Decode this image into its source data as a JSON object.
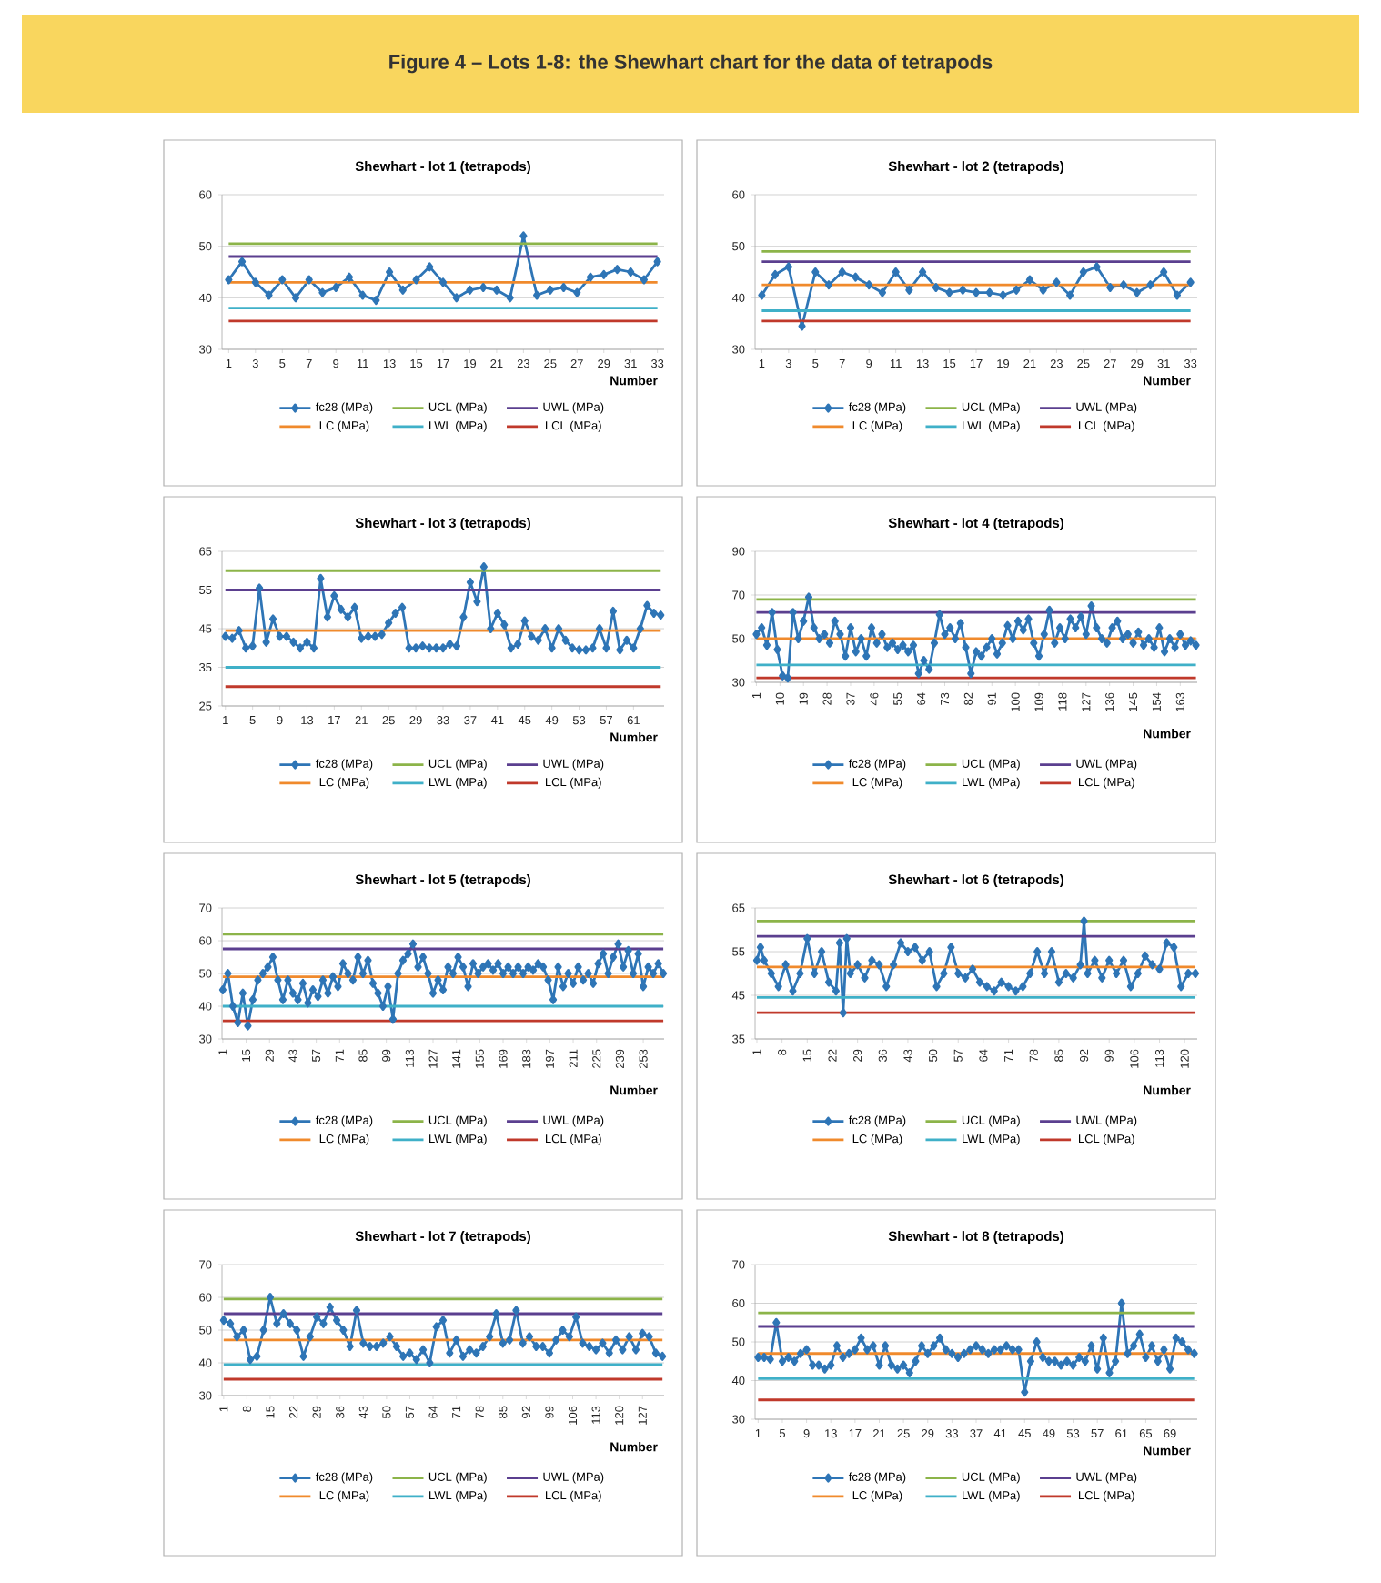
{
  "chart_data": [
    {
      "type": "line",
      "title": "Shewhart - lot 1 (tetrapods)",
      "annotations": [
        "Figure 4 – Lots 1-8: the Shewhart chart for the data of tetrapods"
      ],
      "xlabel": "Number",
      "xlim": [
        0.5,
        33.5
      ],
      "xticks": [
        1,
        3,
        5,
        7,
        9,
        11,
        13,
        15,
        17,
        19,
        21,
        23,
        25,
        27,
        29,
        31,
        33
      ],
      "ylim": [
        30,
        60
      ],
      "yticks": [
        30,
        40,
        50,
        60
      ],
      "grid": "y",
      "legend": "bottom",
      "series": [
        {
          "name": "fc28 (MPa)",
          "color": "#2e75b6",
          "marker": "diamond",
          "x": [
            1,
            2,
            3,
            4,
            5,
            6,
            7,
            8,
            9,
            10,
            11,
            12,
            13,
            14,
            15,
            16,
            17,
            18,
            19,
            20,
            21,
            22,
            23,
            24,
            25,
            26,
            27,
            28,
            29,
            30,
            31,
            32,
            33
          ],
          "values": [
            43.5,
            47,
            43,
            40.5,
            43.5,
            40,
            43.5,
            41,
            42,
            44,
            40.5,
            39.5,
            45,
            41.5,
            43.5,
            46,
            43,
            40,
            41.5,
            42,
            41.5,
            40,
            52,
            40.5,
            41.5,
            42,
            41,
            44,
            44.5,
            45.5,
            45,
            43.5,
            47
          ]
        },
        {
          "name": "UCL (MPa)",
          "color": "#8cb449",
          "x": [
            1,
            33
          ],
          "values": [
            50.5,
            50.5
          ]
        },
        {
          "name": "UWL (MPa)",
          "color": "#5b3f8f",
          "x": [
            1,
            33
          ],
          "values": [
            48,
            48
          ]
        },
        {
          "name": "LC (MPa)",
          "color": "#f08a2c",
          "x": [
            1,
            33
          ],
          "values": [
            43,
            43
          ]
        },
        {
          "name": "LWL (MPa)",
          "color": "#3fb0c8",
          "x": [
            1,
            33
          ],
          "values": [
            38,
            38
          ]
        },
        {
          "name": "LCL (MPa)",
          "color": "#c0392b",
          "x": [
            1,
            33
          ],
          "values": [
            35.5,
            35.5
          ]
        }
      ]
    },
    {
      "type": "line",
      "title": "Shewhart - lot 2 (tetrapods)",
      "xlabel": "Number",
      "xlim": [
        0.5,
        33.5
      ],
      "xticks": [
        1,
        3,
        5,
        7,
        9,
        11,
        13,
        15,
        17,
        19,
        21,
        23,
        25,
        27,
        29,
        31,
        33
      ],
      "ylim": [
        30,
        60
      ],
      "yticks": [
        30,
        40,
        50,
        60
      ],
      "grid": "y",
      "legend": "bottom",
      "series": [
        {
          "name": "fc28 (MPa)",
          "color": "#2e75b6",
          "marker": "diamond",
          "x": [
            1,
            2,
            3,
            4,
            5,
            6,
            7,
            8,
            9,
            10,
            11,
            12,
            13,
            14,
            15,
            16,
            17,
            18,
            19,
            20,
            21,
            22,
            23,
            24,
            25,
            26,
            27,
            28,
            29,
            30,
            31,
            32,
            33
          ],
          "values": [
            40.5,
            44.5,
            46,
            34.5,
            45,
            42.5,
            45,
            44,
            42.5,
            41,
            45,
            41.5,
            45,
            42,
            41,
            41.5,
            41,
            41,
            40.5,
            41.5,
            43.5,
            41.5,
            43,
            40.5,
            45,
            46,
            42,
            42.5,
            41,
            42.5,
            45,
            40.5,
            43
          ]
        },
        {
          "name": "UCL (MPa)",
          "color": "#8cb449",
          "x": [
            1,
            33
          ],
          "values": [
            49,
            49
          ]
        },
        {
          "name": "UWL (MPa)",
          "color": "#5b3f8f",
          "x": [
            1,
            33
          ],
          "values": [
            47,
            47
          ]
        },
        {
          "name": "LC (MPa)",
          "color": "#f08a2c",
          "x": [
            1,
            33
          ],
          "values": [
            42.5,
            42.5
          ]
        },
        {
          "name": "LWL (MPa)",
          "color": "#3fb0c8",
          "x": [
            1,
            33
          ],
          "values": [
            37.5,
            37.5
          ]
        },
        {
          "name": "LCL (MPa)",
          "color": "#c0392b",
          "x": [
            1,
            33
          ],
          "values": [
            35.5,
            35.5
          ]
        }
      ]
    },
    {
      "type": "line",
      "title": "Shewhart - lot 3 (tetrapods)",
      "xlabel": "Number",
      "xlim": [
        0.5,
        65.5
      ],
      "xticks": [
        1,
        5,
        9,
        13,
        17,
        21,
        25,
        29,
        33,
        37,
        41,
        45,
        49,
        53,
        57,
        61
      ],
      "ylim": [
        25,
        65
      ],
      "yticks": [
        25,
        35,
        45,
        55,
        65
      ],
      "grid": "y",
      "legend": "bottom",
      "series": [
        {
          "name": "fc28 (MPa)",
          "color": "#2e75b6",
          "marker": "diamond",
          "x": [
            1,
            2,
            3,
            4,
            5,
            6,
            7,
            8,
            9,
            10,
            11,
            12,
            13,
            14,
            15,
            16,
            17,
            18,
            19,
            20,
            21,
            22,
            23,
            24,
            25,
            26,
            27,
            28,
            29,
            30,
            31,
            32,
            33,
            34,
            35,
            36,
            37,
            38,
            39,
            40,
            41,
            42,
            43,
            44,
            45,
            46,
            47,
            48,
            49,
            50,
            51,
            52,
            53,
            54,
            55,
            56,
            57,
            58,
            59,
            60,
            61,
            62,
            63,
            64,
            65
          ],
          "values": [
            43,
            42.5,
            44.5,
            40,
            40.5,
            55.5,
            41.5,
            47.5,
            43,
            43,
            41.5,
            40,
            41.5,
            40,
            58,
            48,
            53.5,
            50,
            48,
            50.5,
            42.5,
            43,
            43,
            43.5,
            46.5,
            49,
            50.5,
            40,
            40,
            40.5,
            40,
            40,
            40,
            41,
            40.5,
            48,
            57,
            52,
            61,
            45,
            49,
            46,
            40,
            41,
            47,
            43,
            42,
            45,
            40,
            45,
            42,
            40,
            39.5,
            39.5,
            40,
            45,
            40,
            49.5,
            39.5,
            42,
            40,
            45,
            51,
            49,
            48.5
          ]
        },
        {
          "name": "UCL (MPa)",
          "color": "#8cb449",
          "x": [
            1,
            65
          ],
          "values": [
            60,
            60
          ]
        },
        {
          "name": "UWL (MPa)",
          "color": "#5b3f8f",
          "x": [
            1,
            65
          ],
          "values": [
            55,
            55
          ]
        },
        {
          "name": "LC (MPa)",
          "color": "#f08a2c",
          "x": [
            1,
            65
          ],
          "values": [
            44.5,
            44.5
          ]
        },
        {
          "name": "LWL (MPa)",
          "color": "#3fb0c8",
          "x": [
            1,
            65
          ],
          "values": [
            35,
            35
          ]
        },
        {
          "name": "LCL (MPa)",
          "color": "#c0392b",
          "x": [
            1,
            65
          ],
          "values": [
            30,
            30
          ]
        }
      ]
    },
    {
      "type": "line",
      "title": "Shewhart - lot 4 (tetrapods)",
      "xlabel": "Number",
      "xlim": [
        0.5,
        169.5
      ],
      "xticks": [
        1,
        10,
        19,
        28,
        37,
        46,
        55,
        64,
        73,
        82,
        91,
        100,
        109,
        118,
        127,
        136,
        145,
        154,
        163
      ],
      "ylim": [
        30,
        90
      ],
      "yticks": [
        30,
        50,
        70,
        90
      ],
      "grid": "y",
      "legend": "bottom",
      "series": [
        {
          "name": "fc28 (MPa)",
          "color": "#2e75b6",
          "marker": "diamond",
          "x": [
            1,
            3,
            5,
            7,
            9,
            11,
            13,
            15,
            17,
            19,
            21,
            23,
            25,
            27,
            29,
            31,
            33,
            35,
            37,
            39,
            41,
            43,
            45,
            47,
            49,
            51,
            53,
            55,
            57,
            59,
            61,
            63,
            65,
            67,
            69,
            71,
            73,
            75,
            77,
            79,
            81,
            83,
            85,
            87,
            89,
            91,
            93,
            95,
            97,
            99,
            101,
            103,
            105,
            107,
            109,
            111,
            113,
            115,
            117,
            119,
            121,
            123,
            125,
            127,
            129,
            131,
            133,
            135,
            137,
            139,
            141,
            143,
            145,
            147,
            149,
            151,
            153,
            155,
            157,
            159,
            161,
            163,
            165,
            167,
            169
          ],
          "values": [
            52,
            55,
            47,
            62,
            45,
            33,
            32,
            62,
            50,
            58,
            69,
            55,
            50,
            52,
            48,
            58,
            52,
            42,
            55,
            44,
            50,
            42,
            55,
            48,
            52,
            46,
            48,
            45,
            47,
            44,
            47,
            34,
            40,
            36,
            48,
            61,
            52,
            55,
            50,
            57,
            46,
            34,
            44,
            42,
            46,
            50,
            43,
            48,
            56,
            50,
            58,
            54,
            59,
            48,
            42,
            52,
            63,
            48,
            55,
            50,
            59,
            55,
            60,
            52,
            65,
            55,
            50,
            48,
            55,
            58,
            50,
            52,
            48,
            53,
            47,
            50,
            46,
            55,
            44,
            50,
            46,
            52,
            47,
            49,
            47
          ]
        },
        {
          "name": "UCL (MPa)",
          "color": "#8cb449",
          "x": [
            1,
            169
          ],
          "values": [
            68,
            68
          ]
        },
        {
          "name": "UWL (MPa)",
          "color": "#5b3f8f",
          "x": [
            1,
            169
          ],
          "values": [
            62,
            62
          ]
        },
        {
          "name": "LC (MPa)",
          "color": "#f08a2c",
          "x": [
            1,
            169
          ],
          "values": [
            50,
            50
          ]
        },
        {
          "name": "LWL (MPa)",
          "color": "#3fb0c8",
          "x": [
            1,
            169
          ],
          "values": [
            38,
            38
          ]
        },
        {
          "name": "LCL (MPa)",
          "color": "#c0392b",
          "x": [
            1,
            169
          ],
          "values": [
            32,
            32
          ]
        }
      ]
    },
    {
      "type": "line",
      "title": "Shewhart - lot 5 (tetrapods)",
      "xlabel": "Number",
      "xlim": [
        0.5,
        265.5
      ],
      "xticks": [
        1,
        15,
        29,
        43,
        57,
        71,
        85,
        99,
        113,
        127,
        141,
        155,
        169,
        183,
        197,
        211,
        225,
        239,
        253
      ],
      "ylim": [
        30,
        70
      ],
      "yticks": [
        30,
        40,
        50,
        60,
        70
      ],
      "grid": "y",
      "legend": "bottom",
      "series": [
        {
          "name": "fc28 (MPa)",
          "color": "#2e75b6",
          "marker": "diamond",
          "x": [
            1,
            4,
            7,
            10,
            13,
            16,
            19,
            22,
            25,
            28,
            31,
            34,
            37,
            40,
            43,
            46,
            49,
            52,
            55,
            58,
            61,
            64,
            67,
            70,
            73,
            76,
            79,
            82,
            85,
            88,
            91,
            94,
            97,
            100,
            103,
            106,
            109,
            112,
            115,
            118,
            121,
            124,
            127,
            130,
            133,
            136,
            139,
            142,
            145,
            148,
            151,
            154,
            157,
            160,
            163,
            166,
            169,
            172,
            175,
            178,
            181,
            184,
            187,
            190,
            193,
            196,
            199,
            202,
            205,
            208,
            211,
            214,
            217,
            220,
            223,
            226,
            229,
            232,
            235,
            238,
            241,
            244,
            247,
            250,
            253,
            256,
            259,
            262,
            265
          ],
          "values": [
            45,
            50,
            40,
            35,
            44,
            34,
            42,
            48,
            50,
            52,
            55,
            48,
            42,
            48,
            44,
            42,
            47,
            41,
            45,
            43,
            48,
            44,
            49,
            46,
            53,
            50,
            48,
            55,
            50,
            54,
            47,
            44,
            40,
            46,
            36,
            50,
            54,
            56,
            59,
            52,
            55,
            50,
            44,
            48,
            45,
            52,
            50,
            55,
            52,
            46,
            53,
            50,
            52,
            53,
            51,
            53,
            50,
            52,
            50,
            52,
            50,
            52,
            51,
            53,
            52,
            48,
            42,
            52,
            46,
            50,
            47,
            52,
            48,
            50,
            47,
            53,
            56,
            50,
            55,
            59,
            52,
            57,
            50,
            56,
            46,
            52,
            50,
            53,
            50
          ]
        },
        {
          "name": "UCL (MPa)",
          "color": "#8cb449",
          "x": [
            1,
            265
          ],
          "values": [
            62,
            62
          ]
        },
        {
          "name": "UWL (MPa)",
          "color": "#5b3f8f",
          "x": [
            1,
            265
          ],
          "values": [
            57.5,
            57.5
          ]
        },
        {
          "name": "LC (MPa)",
          "color": "#f08a2c",
          "x": [
            1,
            265
          ],
          "values": [
            49,
            49
          ]
        },
        {
          "name": "LWL (MPa)",
          "color": "#3fb0c8",
          "x": [
            1,
            265
          ],
          "values": [
            40,
            40
          ]
        },
        {
          "name": "LCL (MPa)",
          "color": "#c0392b",
          "x": [
            1,
            265
          ],
          "values": [
            35.5,
            35.5
          ]
        }
      ]
    },
    {
      "type": "line",
      "title": "Shewhart - lot 6 (tetrapods)",
      "xlabel": "Number",
      "xlim": [
        0.5,
        123.5
      ],
      "xticks": [
        1,
        8,
        15,
        22,
        29,
        36,
        43,
        50,
        57,
        64,
        71,
        78,
        85,
        92,
        99,
        106,
        113,
        120
      ],
      "ylim": [
        35,
        65
      ],
      "yticks": [
        35,
        45,
        55,
        65
      ],
      "grid": "y",
      "legend": "bottom",
      "series": [
        {
          "name": "fc28 (MPa)",
          "color": "#2e75b6",
          "marker": "diamond",
          "x": [
            1,
            2,
            3,
            5,
            7,
            9,
            11,
            13,
            15,
            17,
            19,
            21,
            23,
            24,
            25,
            26,
            27,
            29,
            31,
            33,
            35,
            37,
            39,
            41,
            43,
            45,
            47,
            49,
            51,
            53,
            55,
            57,
            59,
            61,
            63,
            65,
            67,
            69,
            71,
            73,
            75,
            77,
            79,
            81,
            83,
            85,
            87,
            89,
            91,
            92,
            93,
            95,
            97,
            99,
            101,
            103,
            105,
            107,
            109,
            111,
            113,
            115,
            117,
            119,
            121,
            123
          ],
          "values": [
            53,
            56,
            53,
            50,
            47,
            52,
            46,
            50,
            58,
            50,
            55,
            48,
            46,
            57,
            41,
            58,
            50,
            52,
            49,
            53,
            52,
            47,
            52,
            57,
            55,
            56,
            53,
            55,
            47,
            50,
            56,
            50,
            49,
            51,
            48,
            47,
            46,
            48,
            47,
            46,
            47,
            50,
            55,
            50,
            55,
            48,
            50,
            49,
            52,
            62,
            50,
            53,
            49,
            53,
            50,
            53,
            47,
            50,
            54,
            52,
            51,
            57,
            56,
            47,
            50,
            50
          ]
        },
        {
          "name": "UCL (MPa)",
          "color": "#8cb449",
          "x": [
            1,
            123
          ],
          "values": [
            62,
            62
          ]
        },
        {
          "name": "UWL (MPa)",
          "color": "#5b3f8f",
          "x": [
            1,
            123
          ],
          "values": [
            58.5,
            58.5
          ]
        },
        {
          "name": "LC (MPa)",
          "color": "#f08a2c",
          "x": [
            1,
            123
          ],
          "values": [
            51.5,
            51.5
          ]
        },
        {
          "name": "LWL (MPa)",
          "color": "#3fb0c8",
          "x": [
            1,
            123
          ],
          "values": [
            44.5,
            44.5
          ]
        },
        {
          "name": "LCL (MPa)",
          "color": "#c0392b",
          "x": [
            1,
            123
          ],
          "values": [
            41,
            41
          ]
        }
      ]
    },
    {
      "type": "line",
      "title": "Shewhart - lot 7 (tetrapods)",
      "xlabel": "Number",
      "xlim": [
        0.5,
        133.5
      ],
      "xticks": [
        1,
        8,
        15,
        22,
        29,
        36,
        43,
        50,
        57,
        64,
        71,
        78,
        85,
        92,
        99,
        106,
        113,
        120,
        127
      ],
      "ylim": [
        30,
        70
      ],
      "yticks": [
        30,
        40,
        50,
        60,
        70
      ],
      "grid": "y",
      "legend": "bottom",
      "series": [
        {
          "name": "fc28 (MPa)",
          "color": "#2e75b6",
          "marker": "diamond",
          "x": [
            1,
            3,
            5,
            7,
            9,
            11,
            13,
            15,
            17,
            19,
            21,
            23,
            25,
            27,
            29,
            31,
            33,
            35,
            37,
            39,
            41,
            43,
            45,
            47,
            49,
            51,
            53,
            55,
            57,
            59,
            61,
            63,
            65,
            67,
            69,
            71,
            73,
            75,
            77,
            79,
            81,
            83,
            85,
            87,
            89,
            91,
            93,
            95,
            97,
            99,
            101,
            103,
            105,
            107,
            109,
            111,
            113,
            115,
            117,
            119,
            121,
            123,
            125,
            127,
            129,
            131,
            133
          ],
          "values": [
            53,
            52,
            48,
            50,
            41,
            42,
            50,
            60,
            52,
            55,
            52,
            50,
            42,
            48,
            54,
            52,
            57,
            53,
            50,
            45,
            56,
            46,
            45,
            45,
            46,
            48,
            45,
            42,
            43,
            41,
            44,
            40,
            51,
            53,
            43,
            47,
            42,
            44,
            43,
            45,
            48,
            55,
            46,
            47,
            56,
            46,
            48,
            45,
            45,
            43,
            47,
            50,
            48,
            54,
            46,
            45,
            44,
            46,
            43,
            47,
            44,
            48,
            44,
            49,
            48,
            43,
            42
          ]
        },
        {
          "name": "UCL (MPa)",
          "color": "#8cb449",
          "x": [
            1,
            133
          ],
          "values": [
            59.5,
            59.5
          ]
        },
        {
          "name": "UWL (MPa)",
          "color": "#5b3f8f",
          "x": [
            1,
            133
          ],
          "values": [
            55,
            55
          ]
        },
        {
          "name": "LC (MPa)",
          "color": "#f08a2c",
          "x": [
            1,
            133
          ],
          "values": [
            47,
            47
          ]
        },
        {
          "name": "LWL (MPa)",
          "color": "#3fb0c8",
          "x": [
            1,
            133
          ],
          "values": [
            39.5,
            39.5
          ]
        },
        {
          "name": "LCL (MPa)",
          "color": "#c0392b",
          "x": [
            1,
            133
          ],
          "values": [
            35,
            35
          ]
        }
      ]
    },
    {
      "type": "line",
      "title": "Shewhart - lot 8 (tetrapods)",
      "xlabel": "Number",
      "xlim": [
        0.5,
        73.5
      ],
      "xticks": [
        1,
        5,
        9,
        13,
        17,
        21,
        25,
        29,
        33,
        37,
        41,
        45,
        49,
        53,
        57,
        61,
        65,
        69
      ],
      "ylim": [
        30,
        70
      ],
      "yticks": [
        30,
        40,
        50,
        60,
        70
      ],
      "grid": "y",
      "legend": "bottom",
      "series": [
        {
          "name": "fc28 (MPa)",
          "color": "#2e75b6",
          "marker": "diamond",
          "x": [
            1,
            2,
            3,
            4,
            5,
            6,
            7,
            8,
            9,
            10,
            11,
            12,
            13,
            14,
            15,
            16,
            17,
            18,
            19,
            20,
            21,
            22,
            23,
            24,
            25,
            26,
            27,
            28,
            29,
            30,
            31,
            32,
            33,
            34,
            35,
            36,
            37,
            38,
            39,
            40,
            41,
            42,
            43,
            44,
            45,
            46,
            47,
            48,
            49,
            50,
            51,
            52,
            53,
            54,
            55,
            56,
            57,
            58,
            59,
            60,
            61,
            62,
            63,
            64,
            65,
            66,
            67,
            68,
            69,
            70,
            71,
            72,
            73
          ],
          "values": [
            46,
            46,
            45.5,
            55,
            45,
            46,
            45,
            47,
            48,
            44,
            44,
            43,
            44,
            49,
            46,
            47,
            48,
            51,
            48,
            49,
            44,
            49,
            44,
            43,
            44,
            42,
            45,
            49,
            47,
            49,
            51,
            48,
            47,
            46,
            47,
            48,
            49,
            48,
            47,
            48,
            48,
            49,
            48,
            48,
            37,
            45,
            50,
            46,
            45,
            45,
            44,
            45,
            44,
            46,
            45,
            49,
            43,
            51,
            42,
            45,
            60,
            47,
            49,
            52,
            46,
            49,
            45,
            48,
            43,
            51,
            50,
            48,
            47
          ]
        },
        {
          "name": "UCL (MPa)",
          "color": "#8cb449",
          "x": [
            1,
            73
          ],
          "values": [
            57.5,
            57.5
          ]
        },
        {
          "name": "UWL (MPa)",
          "color": "#5b3f8f",
          "x": [
            1,
            73
          ],
          "values": [
            54,
            54
          ]
        },
        {
          "name": "LC (MPa)",
          "color": "#f08a2c",
          "x": [
            1,
            73
          ],
          "values": [
            47,
            47
          ]
        },
        {
          "name": "LWL (MPa)",
          "color": "#3fb0c8",
          "x": [
            1,
            73
          ],
          "values": [
            40.5,
            40.5
          ]
        },
        {
          "name": "LCL (MPa)",
          "color": "#c0392b",
          "x": [
            1,
            73
          ],
          "values": [
            35,
            35
          ]
        }
      ]
    }
  ]
}
